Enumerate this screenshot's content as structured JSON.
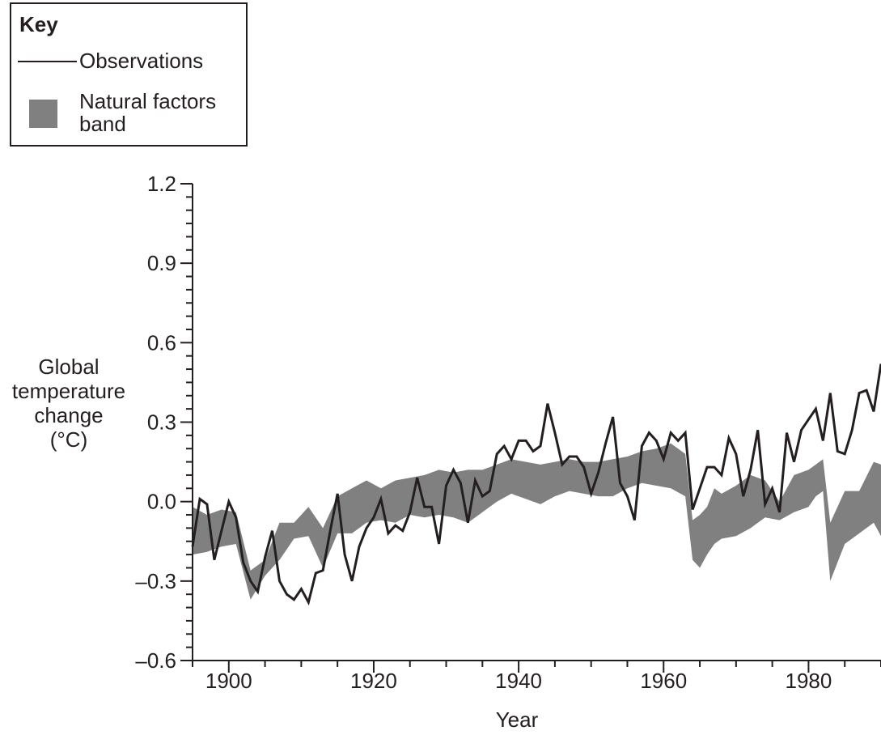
{
  "legend": {
    "title": "Key",
    "observations_label": "Observations",
    "band_label_line1": "Natural factors",
    "band_label_line2": "band"
  },
  "colors": {
    "band": "#808080",
    "line": "#231f20"
  },
  "chart_data": {
    "type": "line",
    "xlabel": "Year",
    "ylabel_lines": [
      "Global",
      "temperature",
      "change",
      "(°C)"
    ],
    "xlim": [
      1895,
      1990
    ],
    "ylim": [
      -0.6,
      1.2
    ],
    "xticks": [
      1900,
      1920,
      1940,
      1960,
      1980
    ],
    "yticks": [
      1.2,
      0.9,
      0.6,
      0.3,
      0.0,
      -0.3,
      -0.6
    ],
    "ytick_labels": [
      "1.2",
      "0.9",
      "0.6",
      "0.3",
      "0.0",
      "–0.3",
      "–0.6"
    ],
    "series": [
      {
        "name": "Observations",
        "x": [
          1895,
          1896,
          1897,
          1898,
          1899,
          1900,
          1901,
          1902,
          1903,
          1904,
          1905,
          1906,
          1907,
          1908,
          1909,
          1910,
          1911,
          1912,
          1913,
          1914,
          1915,
          1916,
          1917,
          1918,
          1919,
          1920,
          1921,
          1922,
          1923,
          1924,
          1925,
          1926,
          1927,
          1928,
          1929,
          1930,
          1931,
          1932,
          1933,
          1934,
          1935,
          1936,
          1937,
          1938,
          1939,
          1940,
          1941,
          1942,
          1943,
          1944,
          1945,
          1946,
          1947,
          1948,
          1949,
          1950,
          1951,
          1952,
          1953,
          1954,
          1955,
          1956,
          1957,
          1958,
          1959,
          1960,
          1961,
          1962,
          1963,
          1964,
          1965,
          1966,
          1967,
          1968,
          1969,
          1970,
          1971,
          1972,
          1973,
          1974,
          1975,
          1976,
          1977,
          1978,
          1979,
          1980,
          1981,
          1982,
          1983,
          1984,
          1985,
          1986,
          1987,
          1988,
          1989,
          1990
        ],
        "values": [
          -0.17,
          0.01,
          -0.01,
          -0.22,
          -0.11,
          0.0,
          -0.06,
          -0.23,
          -0.3,
          -0.34,
          -0.21,
          -0.11,
          -0.3,
          -0.35,
          -0.37,
          -0.33,
          -0.38,
          -0.27,
          -0.26,
          -0.11,
          0.03,
          -0.2,
          -0.3,
          -0.17,
          -0.1,
          -0.06,
          0.01,
          -0.12,
          -0.09,
          -0.11,
          -0.04,
          0.09,
          -0.02,
          -0.02,
          -0.16,
          0.06,
          0.12,
          0.07,
          -0.08,
          0.08,
          0.02,
          0.04,
          0.18,
          0.21,
          0.16,
          0.23,
          0.23,
          0.19,
          0.21,
          0.37,
          0.26,
          0.14,
          0.17,
          0.17,
          0.13,
          0.03,
          0.11,
          0.22,
          0.32,
          0.07,
          0.02,
          -0.07,
          0.21,
          0.26,
          0.23,
          0.16,
          0.26,
          0.23,
          0.26,
          -0.03,
          0.05,
          0.13,
          0.13,
          0.1,
          0.24,
          0.18,
          0.02,
          0.12,
          0.27,
          -0.01,
          0.05,
          -0.04,
          0.26,
          0.15,
          0.27,
          0.31,
          0.35,
          0.23,
          0.41,
          0.19,
          0.18,
          0.27,
          0.41,
          0.42,
          0.34,
          0.52
        ]
      },
      {
        "name": "Natural factors band",
        "x": [
          1895,
          1897,
          1899,
          1901,
          1903,
          1905,
          1907,
          1909,
          1911,
          1913,
          1915,
          1917,
          1919,
          1921,
          1923,
          1925,
          1927,
          1929,
          1931,
          1933,
          1935,
          1937,
          1939,
          1941,
          1943,
          1945,
          1947,
          1949,
          1951,
          1953,
          1955,
          1957,
          1959,
          1961,
          1963,
          1964,
          1965,
          1966,
          1967,
          1968,
          1970,
          1972,
          1974,
          1976,
          1978,
          1980,
          1981,
          1982,
          1983,
          1985,
          1987,
          1989,
          1990
        ],
        "upper": [
          -0.02,
          -0.05,
          -0.03,
          -0.04,
          -0.26,
          -0.22,
          -0.08,
          -0.08,
          -0.02,
          -0.1,
          0.02,
          0.05,
          0.08,
          0.05,
          0.08,
          0.09,
          0.1,
          0.12,
          0.11,
          0.12,
          0.12,
          0.14,
          0.16,
          0.15,
          0.14,
          0.15,
          0.16,
          0.15,
          0.15,
          0.16,
          0.17,
          0.19,
          0.2,
          0.22,
          0.18,
          -0.07,
          -0.05,
          -0.02,
          0.05,
          0.03,
          0.06,
          0.1,
          0.08,
          0.0,
          0.1,
          0.12,
          0.14,
          0.16,
          -0.08,
          0.04,
          0.04,
          0.15,
          0.14
        ],
        "lower": [
          -0.2,
          -0.19,
          -0.17,
          -0.16,
          -0.37,
          -0.28,
          -0.22,
          -0.14,
          -0.13,
          -0.25,
          -0.12,
          -0.12,
          -0.08,
          -0.07,
          -0.08,
          -0.05,
          -0.06,
          -0.05,
          -0.06,
          -0.08,
          -0.04,
          0.0,
          0.03,
          0.01,
          -0.01,
          0.02,
          0.04,
          0.03,
          0.02,
          0.02,
          0.05,
          0.07,
          0.06,
          0.05,
          0.02,
          -0.22,
          -0.25,
          -0.2,
          -0.16,
          -0.14,
          -0.13,
          -0.1,
          -0.06,
          -0.07,
          -0.04,
          -0.02,
          0.02,
          0.04,
          -0.3,
          -0.16,
          -0.12,
          -0.08,
          -0.13
        ]
      }
    ]
  }
}
